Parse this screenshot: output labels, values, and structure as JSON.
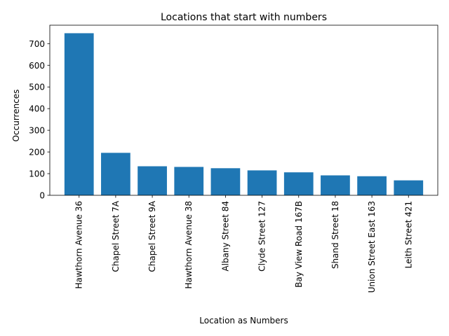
{
  "chart_data": {
    "type": "bar",
    "title": "Locations that start with numbers",
    "xlabel": "Location as Numbers",
    "ylabel": "Occurrences",
    "categories": [
      "Hawthorn Avenue 36",
      "Chapel Street 7A",
      "Chapel Street 9A",
      "Hawthorn Avenue 38",
      "Albany Street 84",
      "Clyde Street 127",
      "Bay View Road 167B",
      "Shand Street 18",
      "Union Street East 163",
      "Leith Street 421"
    ],
    "values": [
      748,
      196,
      134,
      131,
      125,
      115,
      106,
      92,
      88,
      69
    ],
    "ylim": [
      0,
      785
    ],
    "yticks": [
      0,
      100,
      200,
      300,
      400,
      500,
      600,
      700
    ],
    "grid": false,
    "bar_color": "#1f77b4"
  }
}
